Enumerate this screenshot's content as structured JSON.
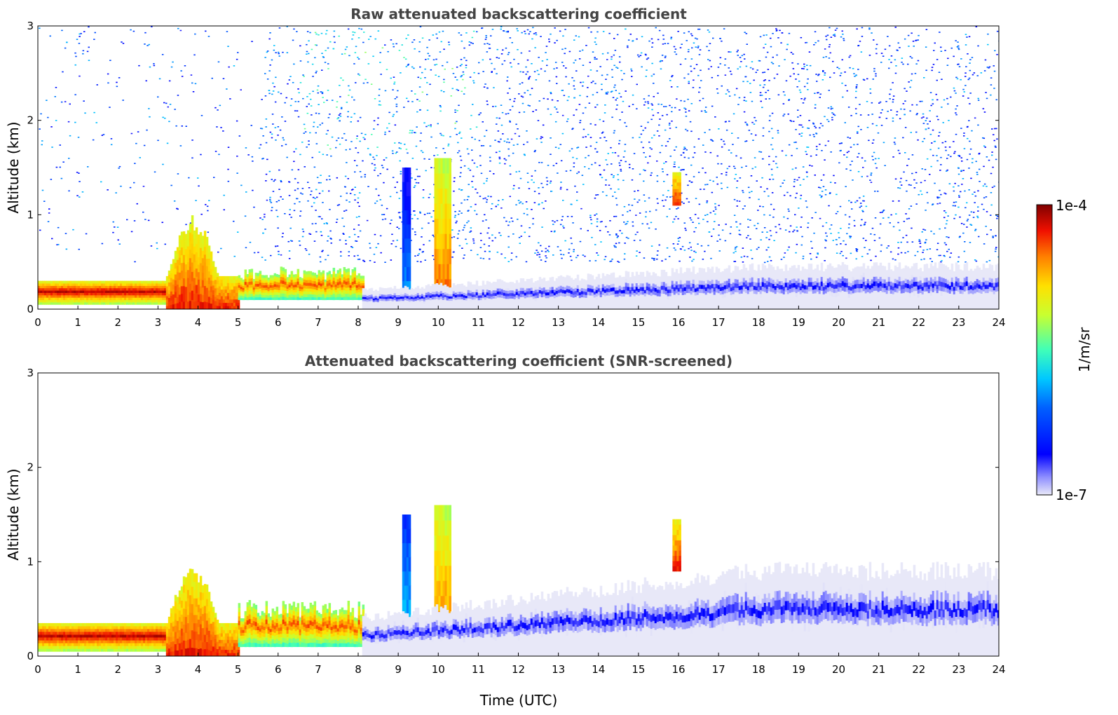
{
  "chart_data": [
    {
      "type": "heatmap",
      "title": "Raw attenuated backscattering coefficient",
      "xlabel": "",
      "ylabel": "Altitude (km)",
      "xlim": [
        0,
        24
      ],
      "ylim": [
        0,
        3
      ],
      "x_ticks": [
        "0",
        "1",
        "2",
        "3",
        "4",
        "5",
        "6",
        "7",
        "8",
        "9",
        "10",
        "11",
        "12",
        "13",
        "14",
        "15",
        "16",
        "17",
        "18",
        "19",
        "20",
        "21",
        "22",
        "23",
        "24"
      ],
      "y_ticks": [
        "0",
        "1",
        "2",
        "3"
      ],
      "screened": false,
      "features": [
        {
          "kind": "boundary_layer",
          "x": [
            0,
            3.2
          ],
          "y": [
            0.05,
            0.3
          ],
          "level": 0.95
        },
        {
          "kind": "aerosol_plume",
          "x": [
            3.2,
            5.0
          ],
          "y": [
            0.0,
            1.0
          ],
          "level": 0.9
        },
        {
          "kind": "aerosol_layer",
          "x": [
            5.0,
            8.1
          ],
          "y": [
            0.1,
            0.45
          ],
          "level": 0.85
        },
        {
          "kind": "rain_column",
          "x": [
            9.1,
            9.3
          ],
          "y": [
            0.0,
            1.5
          ],
          "level": 0.35
        },
        {
          "kind": "rain_column",
          "x": [
            9.9,
            10.3
          ],
          "y": [
            0.0,
            1.6
          ],
          "level": 0.85
        },
        {
          "kind": "cloud",
          "x": [
            15.85,
            16.05
          ],
          "y": [
            1.1,
            1.45
          ],
          "level": 0.9
        },
        {
          "kind": "clear_boundary_layer",
          "x": [
            8.1,
            24
          ],
          "y": [
            0.0,
            0.5
          ],
          "level": 0.12
        }
      ]
    },
    {
      "type": "heatmap",
      "title": "Attenuated backscattering coefficient (SNR-screened)",
      "xlabel": "Time (UTC)",
      "ylabel": "Altitude (km)",
      "xlim": [
        0,
        24
      ],
      "ylim": [
        0,
        3
      ],
      "x_ticks": [
        "0",
        "1",
        "2",
        "3",
        "4",
        "5",
        "6",
        "7",
        "8",
        "9",
        "10",
        "11",
        "12",
        "13",
        "14",
        "15",
        "16",
        "17",
        "18",
        "19",
        "20",
        "21",
        "22",
        "23",
        "24"
      ],
      "y_ticks": [
        "0",
        "1",
        "2",
        "3"
      ],
      "screened": true,
      "features": [
        {
          "kind": "boundary_layer",
          "x": [
            0,
            3.2
          ],
          "y": [
            0.05,
            0.35
          ],
          "level": 0.95
        },
        {
          "kind": "aerosol_plume",
          "x": [
            3.2,
            5.0
          ],
          "y": [
            0.0,
            1.0
          ],
          "level": 0.9
        },
        {
          "kind": "aerosol_layer",
          "x": [
            5.0,
            8.1
          ],
          "y": [
            0.1,
            0.6
          ],
          "level": 0.85
        },
        {
          "kind": "rain_column",
          "x": [
            9.1,
            9.3
          ],
          "y": [
            0.0,
            1.5
          ],
          "level": 0.45
        },
        {
          "kind": "rain_column",
          "x": [
            9.9,
            10.3
          ],
          "y": [
            0.0,
            1.6
          ],
          "level": 0.85
        },
        {
          "kind": "cloud",
          "x": [
            15.85,
            16.05
          ],
          "y": [
            0.9,
            1.45
          ],
          "level": 0.9
        },
        {
          "kind": "screened_boundary_layer",
          "x": [
            8.1,
            24
          ],
          "y": [
            0.0,
            1.0
          ],
          "level": 0.12
        }
      ]
    }
  ],
  "colorbar": {
    "label": "1/m/sr",
    "max_label": "1e-4",
    "min_label": "1e-7",
    "scale": "log"
  }
}
